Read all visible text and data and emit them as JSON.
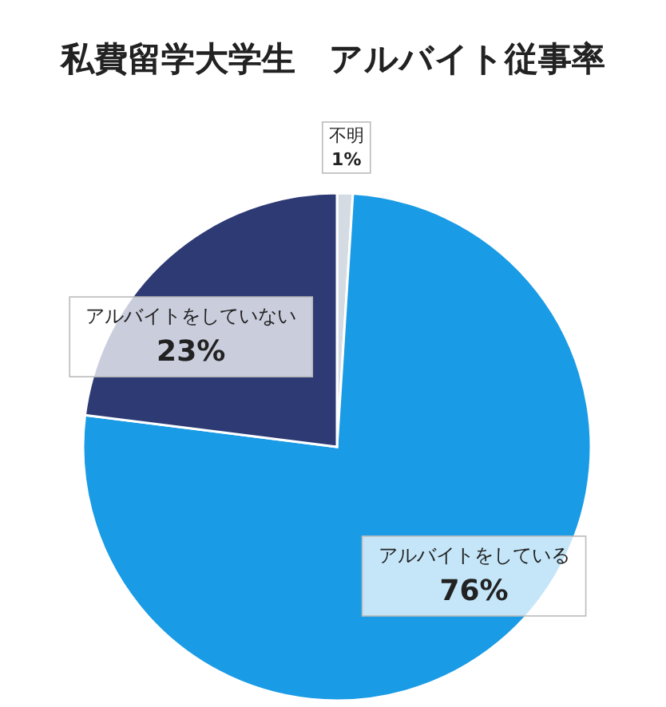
{
  "chart_data": {
    "type": "pie",
    "title": "私費留学大学生　アルバイト従事率",
    "categories": [
      "不明",
      "アルバイトをしている",
      "アルバイトをしていない"
    ],
    "values": [
      1,
      76,
      23
    ],
    "colors": [
      "#d5dbe2",
      "#1a9be6",
      "#2e3a74"
    ],
    "value_labels": [
      "1%",
      "76%",
      "23%"
    ]
  }
}
